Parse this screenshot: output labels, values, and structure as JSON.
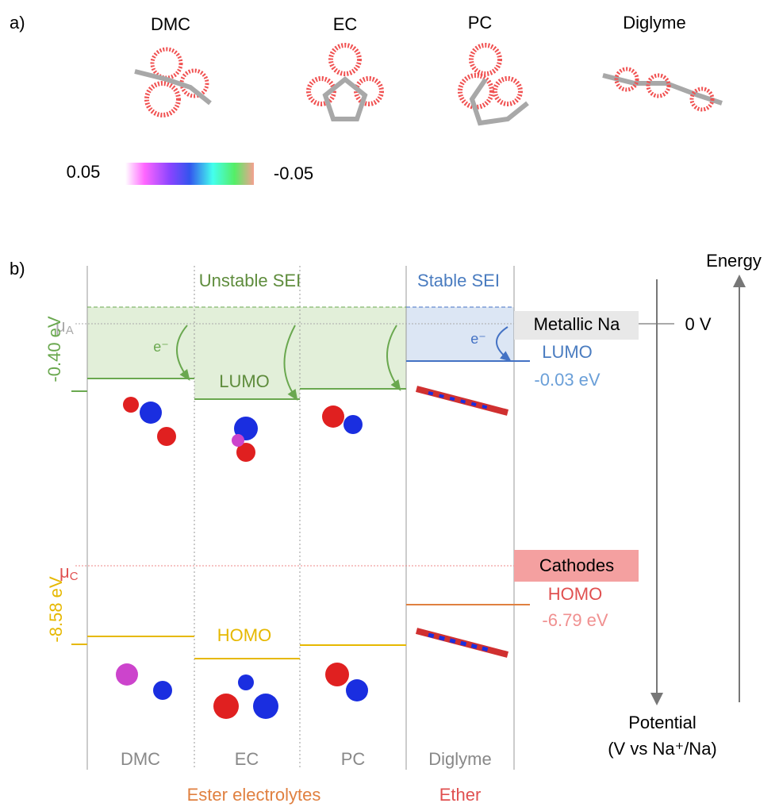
{
  "panel_a": {
    "label": "a)",
    "molecules": [
      "DMC",
      "EC",
      "PC",
      "Diglyme"
    ],
    "colorbar": {
      "max_label": "0.05",
      "min_label": "-0.05"
    }
  },
  "panel_b": {
    "label": "b)",
    "unstable_sei": "Unstable SEI",
    "stable_sei": "Stable SEI",
    "mu_a": {
      "symbol": "μ",
      "subscript": "A"
    },
    "mu_c": {
      "symbol": "μ",
      "subscript": "C"
    },
    "ester_lumo_level": "-0.40 eV",
    "ester_homo_level": "-8.58 eV",
    "electron_labels": [
      "e⁻",
      "e⁻"
    ],
    "ester_lumo_label": "LUMO",
    "ester_homo_label": "HOMO",
    "metallic_na": "Metallic Na",
    "zero_v": "0 V",
    "diglyme_lumo": {
      "label": "LUMO",
      "value": "-0.03 eV"
    },
    "cathodes": "Cathodes",
    "diglyme_homo": {
      "label": "HOMO",
      "value": "-6.79 eV"
    },
    "columns": [
      "DMC",
      "EC",
      "PC",
      "Diglyme"
    ],
    "ester_group": "Ester electrolytes",
    "ether_group": "Ether",
    "energy_axis": "Energy",
    "potential_axis": {
      "line1": "Potential",
      "line2": "(V vs Na⁺/Na)"
    }
  }
}
